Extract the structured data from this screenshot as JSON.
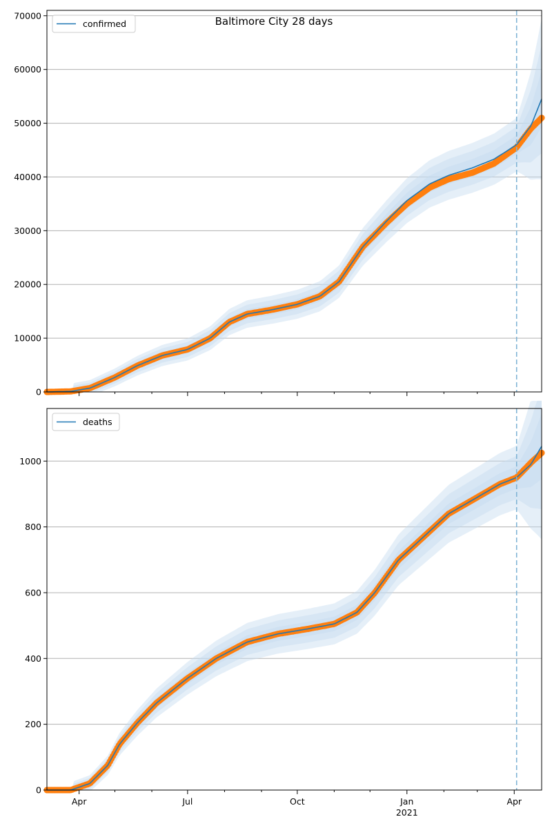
{
  "figure": {
    "title": "Baltimore City 28 days"
  },
  "colors": {
    "model_line": "#1f77b4",
    "band": "#c6dbef",
    "observed": "#ff7f0e",
    "grid": "#b0b0b0",
    "forecast_line": "#7fb3d5"
  },
  "chart_data": [
    {
      "type": "line",
      "name": "confirmed",
      "legend": "top-left",
      "grid": true,
      "forecast_start": "2021-04-03",
      "xlim": [
        "2020-03-05",
        "2021-04-24"
      ],
      "ylim": [
        0,
        71000
      ],
      "yticks": [
        0,
        10000,
        20000,
        30000,
        40000,
        50000,
        60000,
        70000
      ],
      "series": [
        {
          "name": "confirmed",
          "x": [
            "2020-03-05",
            "2020-03-25",
            "2020-04-10",
            "2020-05-01",
            "2020-05-20",
            "2020-06-10",
            "2020-07-01",
            "2020-07-20",
            "2020-08-05",
            "2020-08-20",
            "2020-09-10",
            "2020-10-01",
            "2020-10-20",
            "2020-11-05",
            "2020-11-25",
            "2020-12-15",
            "2021-01-01",
            "2021-01-20",
            "2021-02-05",
            "2021-02-25",
            "2021-03-15",
            "2021-04-03",
            "2021-04-15",
            "2021-04-24"
          ],
          "y": [
            0,
            100,
            700,
            2700,
            4900,
            6800,
            7900,
            10000,
            13000,
            14500,
            15300,
            16300,
            17800,
            20500,
            27000,
            31800,
            35600,
            38700,
            40300,
            41700,
            43300,
            46000,
            49500,
            54500
          ]
        },
        {
          "name": "observed",
          "x": [
            "2020-03-05",
            "2020-03-25",
            "2020-04-10",
            "2020-05-01",
            "2020-05-20",
            "2020-06-10",
            "2020-07-01",
            "2020-07-20",
            "2020-08-05",
            "2020-08-20",
            "2020-09-10",
            "2020-10-01",
            "2020-10-20",
            "2020-11-05",
            "2020-11-25",
            "2020-12-15",
            "2021-01-01",
            "2021-01-20",
            "2021-02-05",
            "2021-02-25",
            "2021-03-15",
            "2021-04-03",
            "2021-04-15",
            "2021-04-24"
          ],
          "y": [
            0,
            100,
            700,
            2700,
            4900,
            6800,
            7900,
            10000,
            13000,
            14500,
            15300,
            16300,
            17800,
            20500,
            27000,
            31500,
            35000,
            38000,
            39600,
            40800,
            42500,
            45500,
            49000,
            51000
          ]
        }
      ]
    },
    {
      "type": "line",
      "name": "deaths",
      "legend": "top-left",
      "grid": true,
      "forecast_start": "2021-04-03",
      "xlim": [
        "2020-03-05",
        "2021-04-24"
      ],
      "ylim": [
        0,
        1160
      ],
      "yticks": [
        0,
        200,
        400,
        600,
        800,
        1000
      ],
      "xticks": [
        {
          "date": "2020-04-01",
          "label": "Apr"
        },
        {
          "date": "2020-07-01",
          "label": "Jul"
        },
        {
          "date": "2020-10-01",
          "label": "Oct"
        },
        {
          "date": "2021-01-01",
          "label": "Jan",
          "sublabel": "2021"
        },
        {
          "date": "2021-04-01",
          "label": "Apr"
        }
      ],
      "series": [
        {
          "name": "deaths",
          "x": [
            "2020-03-05",
            "2020-03-25",
            "2020-04-10",
            "2020-04-25",
            "2020-05-05",
            "2020-05-20",
            "2020-06-05",
            "2020-07-01",
            "2020-07-25",
            "2020-08-20",
            "2020-09-15",
            "2020-10-10",
            "2020-11-01",
            "2020-11-20",
            "2020-12-05",
            "2020-12-25",
            "2021-01-15",
            "2021-02-05",
            "2021-03-01",
            "2021-03-20",
            "2021-04-03",
            "2021-04-15",
            "2021-04-24"
          ],
          "y": [
            0,
            0,
            20,
            75,
            140,
            205,
            265,
            340,
            400,
            450,
            475,
            490,
            505,
            540,
            600,
            700,
            770,
            840,
            890,
            930,
            950,
            990,
            1045
          ]
        },
        {
          "name": "observed",
          "x": [
            "2020-03-05",
            "2020-03-25",
            "2020-04-10",
            "2020-04-25",
            "2020-05-05",
            "2020-05-20",
            "2020-06-05",
            "2020-07-01",
            "2020-07-25",
            "2020-08-20",
            "2020-09-15",
            "2020-10-10",
            "2020-11-01",
            "2020-11-20",
            "2020-12-05",
            "2020-12-25",
            "2021-01-15",
            "2021-02-05",
            "2021-03-01",
            "2021-03-20",
            "2021-04-03",
            "2021-04-15",
            "2021-04-24"
          ],
          "y": [
            0,
            0,
            20,
            75,
            140,
            205,
            265,
            340,
            400,
            450,
            475,
            490,
            505,
            540,
            600,
            700,
            770,
            840,
            890,
            930,
            950,
            995,
            1025
          ]
        }
      ]
    }
  ]
}
